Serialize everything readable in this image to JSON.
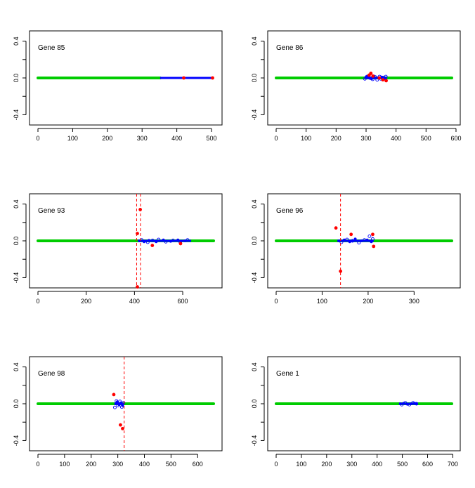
{
  "figure": {
    "layout": "3 rows x 2 columns",
    "colors": {
      "green": "#00CC00",
      "blue": "#0000FF",
      "red": "#FF0000",
      "axis": "#000000"
    }
  },
  "chart_data": [
    {
      "type": "scatter",
      "title": "Gene 85",
      "xlim": [
        0,
        506
      ],
      "ylim": [
        -0.45,
        0.45
      ],
      "xticks": [
        0,
        100,
        200,
        300,
        400,
        500
      ],
      "yticks": [
        -0.4,
        -0.2,
        0.0,
        0.2,
        0.4
      ],
      "ytick_labels": [
        "-0.4",
        "",
        "0.0",
        "",
        "0.4"
      ],
      "green_range": [
        0,
        352
      ],
      "blue_range": [
        352,
        506
      ],
      "blue_points": [],
      "blue_open_points": [],
      "red_points": [
        [
          420,
          0.0
        ],
        [
          503,
          0.0
        ]
      ],
      "vlines": []
    },
    {
      "type": "scatter",
      "title": "Gene 86",
      "xlim": [
        0,
        586
      ],
      "ylim": [
        -0.45,
        0.45
      ],
      "xticks": [
        0,
        100,
        200,
        300,
        400,
        500,
        600
      ],
      "yticks": [
        -0.4,
        -0.2,
        0.0,
        0.2,
        0.4
      ],
      "ytick_labels": [
        "-0.4",
        "",
        "0.0",
        "",
        "0.4"
      ],
      "green_range": [
        0,
        586
      ],
      "blue_range": [
        295,
        370
      ],
      "blue_points": [
        [
          300,
          0.01
        ],
        [
          306,
          0.02
        ],
        [
          318,
          -0.01
        ],
        [
          326,
          0.02
        ],
        [
          340,
          0.0
        ],
        [
          352,
          0.01
        ],
        [
          364,
          -0.01
        ]
      ],
      "blue_open_points": [
        [
          296,
          -0.01
        ],
        [
          303,
          0.015
        ],
        [
          312,
          0.0
        ],
        [
          322,
          -0.015
        ],
        [
          331,
          0.01
        ],
        [
          337,
          -0.02
        ],
        [
          345,
          0.015
        ],
        [
          349,
          -0.01
        ],
        [
          358,
          0.005
        ],
        [
          366,
          0.015
        ]
      ],
      "red_points": [
        [
          310,
          0.03
        ],
        [
          316,
          0.05
        ],
        [
          323,
          0.02
        ],
        [
          344,
          0.0
        ],
        [
          356,
          -0.02
        ],
        [
          367,
          -0.03
        ]
      ],
      "vlines": []
    },
    {
      "type": "scatter",
      "title": "Gene 93",
      "xlim": [
        0,
        728
      ],
      "ylim": [
        -0.45,
        0.45
      ],
      "xticks": [
        0,
        200,
        400,
        600
      ],
      "yticks": [
        -0.4,
        -0.2,
        0.0,
        0.2,
        0.4
      ],
      "ytick_labels": [
        "-0.4",
        "",
        "0.0",
        "",
        "0.4"
      ],
      "green_range": [
        0,
        728
      ],
      "blue_range": [
        415,
        635
      ],
      "blue_points": [
        [
          420,
          0.0
        ],
        [
          440,
          -0.01
        ],
        [
          460,
          0.005
        ],
        [
          490,
          -0.01
        ],
        [
          520,
          0.01
        ],
        [
          550,
          -0.005
        ],
        [
          580,
          0.01
        ],
        [
          610,
          0.0
        ]
      ],
      "blue_open_points": [
        [
          430,
          0.01
        ],
        [
          455,
          -0.015
        ],
        [
          475,
          0.005
        ],
        [
          500,
          0.015
        ],
        [
          530,
          -0.01
        ],
        [
          560,
          0.005
        ],
        [
          590,
          -0.015
        ],
        [
          620,
          0.01
        ]
      ],
      "red_points": [
        [
          412,
          0.08
        ],
        [
          412,
          -0.5
        ],
        [
          424,
          0.34
        ],
        [
          474,
          -0.05
        ],
        [
          591,
          -0.03
        ]
      ],
      "vlines": [
        409,
        425
      ]
    },
    {
      "type": "scatter",
      "title": "Gene 96",
      "xlim": [
        0,
        382
      ],
      "ylim": [
        -0.45,
        0.45
      ],
      "xticks": [
        0,
        100,
        200,
        300
      ],
      "yticks": [
        -0.4,
        -0.2,
        0.0,
        0.2,
        0.4
      ],
      "ytick_labels": [
        "-0.4",
        "",
        "0.0",
        "",
        "0.4"
      ],
      "green_range": [
        0,
        382
      ],
      "blue_range": [
        133,
        212
      ],
      "blue_points": [
        [
          137,
          0.0
        ],
        [
          148,
          0.01
        ],
        [
          160,
          -0.01
        ],
        [
          172,
          0.02
        ],
        [
          186,
          0.0
        ],
        [
          198,
          0.01
        ],
        [
          207,
          -0.01
        ]
      ],
      "blue_open_points": [
        [
          142,
          -0.015
        ],
        [
          154,
          0.015
        ],
        [
          166,
          0.0
        ],
        [
          180,
          -0.02
        ],
        [
          192,
          0.01
        ],
        [
          203,
          0.05
        ],
        [
          210,
          0.02
        ]
      ],
      "red_points": [
        [
          130,
          0.14
        ],
        [
          140,
          -0.33
        ],
        [
          163,
          0.07
        ],
        [
          210,
          0.07
        ],
        [
          212,
          -0.06
        ]
      ],
      "vlines": [
        140
      ]
    },
    {
      "type": "scatter",
      "title": "Gene 98",
      "xlim": [
        0,
        660
      ],
      "ylim": [
        -0.45,
        0.45
      ],
      "xticks": [
        0,
        100,
        200,
        300,
        400,
        500,
        600
      ],
      "yticks": [
        -0.4,
        -0.2,
        0.0,
        0.2,
        0.4
      ],
      "ytick_labels": [
        "-0.4",
        "",
        "0.0",
        "",
        "0.4"
      ],
      "green_range": [
        0,
        660
      ],
      "blue_range": [
        288,
        322
      ],
      "blue_points": [
        [
          292,
          0.0
        ],
        [
          298,
          0.02
        ],
        [
          305,
          -0.01
        ],
        [
          312,
          0.01
        ],
        [
          318,
          -0.02
        ]
      ],
      "blue_open_points": [
        [
          289,
          -0.04
        ],
        [
          295,
          0.03
        ],
        [
          301,
          -0.02
        ],
        [
          308,
          0.025
        ],
        [
          315,
          -0.035
        ],
        [
          321,
          0.01
        ]
      ],
      "red_points": [
        [
          285,
          0.1
        ],
        [
          310,
          -0.23
        ],
        [
          318,
          -0.27
        ]
      ],
      "vlines": [
        324
      ]
    },
    {
      "type": "scatter",
      "title": "Gene 1",
      "xlim": [
        0,
        696
      ],
      "ylim": [
        -0.45,
        0.45
      ],
      "xticks": [
        0,
        100,
        200,
        300,
        400,
        500,
        600,
        700
      ],
      "yticks": [
        -0.4,
        -0.2,
        0.0,
        0.2,
        0.4
      ],
      "ytick_labels": [
        "-0.4",
        "",
        "0.0",
        "",
        "0.4"
      ],
      "green_range": [
        0,
        696
      ],
      "blue_range": [
        488,
        560
      ],
      "blue_points": [
        [
          492,
          0.0
        ],
        [
          505,
          0.005
        ],
        [
          520,
          -0.005
        ],
        [
          535,
          0.0
        ],
        [
          548,
          0.005
        ]
      ],
      "blue_open_points": [
        [
          498,
          -0.01
        ],
        [
          512,
          0.01
        ],
        [
          528,
          -0.01
        ],
        [
          542,
          0.01
        ],
        [
          556,
          0.0
        ]
      ],
      "red_points": [],
      "vlines": []
    }
  ]
}
